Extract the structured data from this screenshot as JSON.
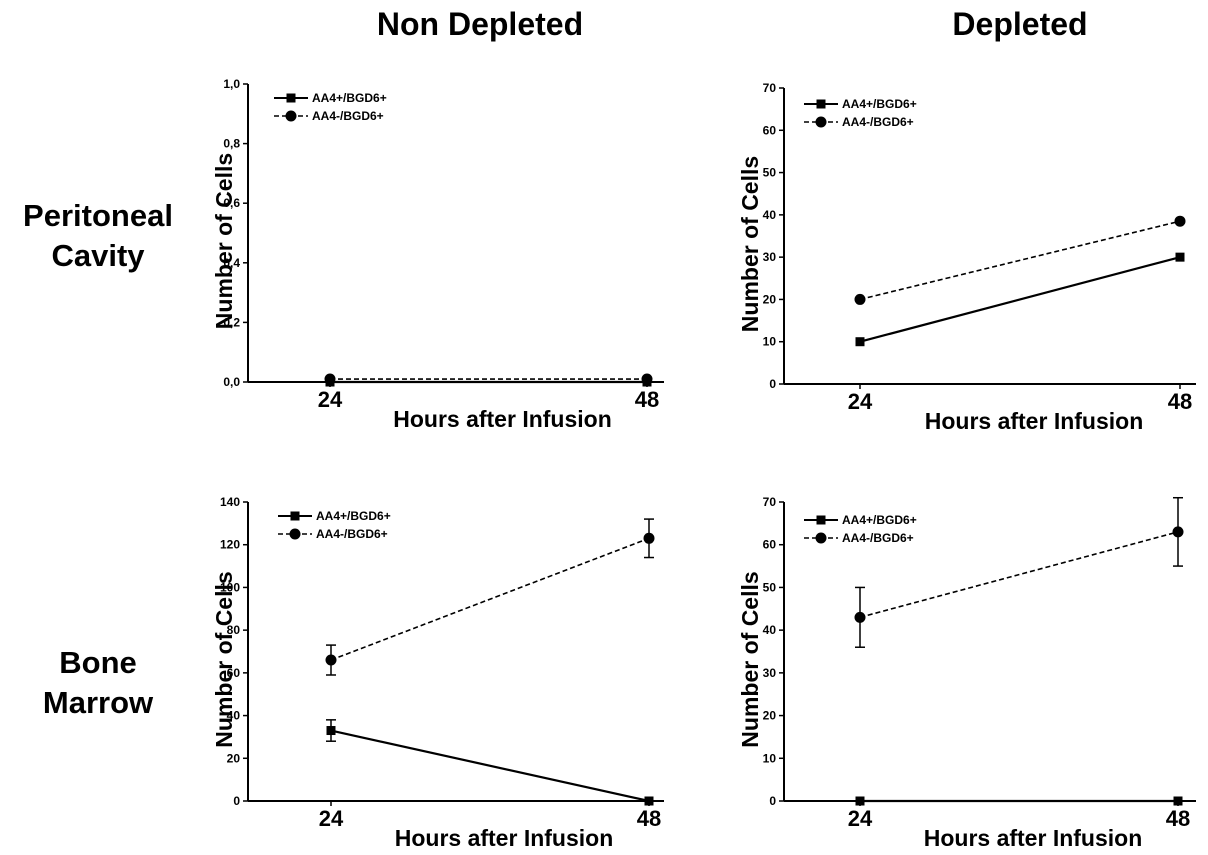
{
  "column_titles": [
    "Non Depleted",
    "Depleted"
  ],
  "row_titles": [
    {
      "line1": "Peritoneal",
      "line2": "Cavity"
    },
    {
      "line1": "Bone",
      "line2": "Marrow"
    }
  ],
  "chart_data": [
    {
      "type": "line",
      "panel": "Peritoneal Cavity / Non Depleted",
      "x": [
        "24",
        "48"
      ],
      "xlabel": "Hours after Infusion",
      "ylabel": "Number of Cells",
      "ylim": [
        0,
        1.0
      ],
      "yticks": [
        "0,0",
        "0,2",
        "0,4",
        "0,6",
        "0,8",
        "1,0"
      ],
      "legend_position": "top-left",
      "series": [
        {
          "name": "AA4+/BGD6+",
          "marker": "square",
          "line": "solid",
          "values": [
            0,
            0
          ]
        },
        {
          "name": "AA4-/BGD6+",
          "marker": "circle",
          "line": "dashed",
          "values": [
            0.01,
            0.01
          ]
        }
      ]
    },
    {
      "type": "line",
      "panel": "Peritoneal Cavity / Depleted",
      "x": [
        "24",
        "48"
      ],
      "xlabel": "Hours after Infusion",
      "ylabel": "Number of Cells",
      "ylim": [
        0,
        70
      ],
      "yticks": [
        "0",
        "10",
        "20",
        "30",
        "40",
        "50",
        "60",
        "70"
      ],
      "legend_position": "top-left",
      "series": [
        {
          "name": "AA4+/BGD6+",
          "marker": "square",
          "line": "solid",
          "values": [
            10,
            30
          ]
        },
        {
          "name": "AA4-/BGD6+",
          "marker": "circle",
          "line": "dashed",
          "values": [
            20,
            38.5
          ]
        }
      ]
    },
    {
      "type": "line",
      "panel": "Bone Marrow / Non Depleted",
      "x": [
        "24",
        "48"
      ],
      "xlabel": "Hours after Infusion",
      "ylabel": "Number of Cells",
      "ylim": [
        0,
        140
      ],
      "yticks": [
        "0",
        "20",
        "40",
        "60",
        "80",
        "100",
        "120",
        "140"
      ],
      "legend_position": "top-left",
      "series": [
        {
          "name": "AA4+/BGD6+",
          "marker": "square",
          "line": "solid",
          "values": [
            33,
            0
          ],
          "errors": [
            5,
            0
          ]
        },
        {
          "name": "AA4-/BGD6+",
          "marker": "circle",
          "line": "dashed",
          "values": [
            66,
            123
          ],
          "errors": [
            7,
            9
          ]
        }
      ]
    },
    {
      "type": "line",
      "panel": "Bone Marrow / Depleted",
      "x": [
        "24",
        "48"
      ],
      "xlabel": "Hours after Infusion",
      "ylabel": "Number of Cells",
      "ylim": [
        0,
        70
      ],
      "yticks": [
        "0",
        "10",
        "20",
        "30",
        "40",
        "50",
        "60",
        "70"
      ],
      "legend_position": "top-left",
      "series": [
        {
          "name": "AA4+/BGD6+",
          "marker": "square",
          "line": "solid",
          "values": [
            0,
            0
          ],
          "errors": [
            0,
            0
          ]
        },
        {
          "name": "AA4-/BGD6+",
          "marker": "circle",
          "line": "dashed",
          "values": [
            43,
            63
          ],
          "errors": [
            7,
            8
          ]
        }
      ]
    }
  ]
}
